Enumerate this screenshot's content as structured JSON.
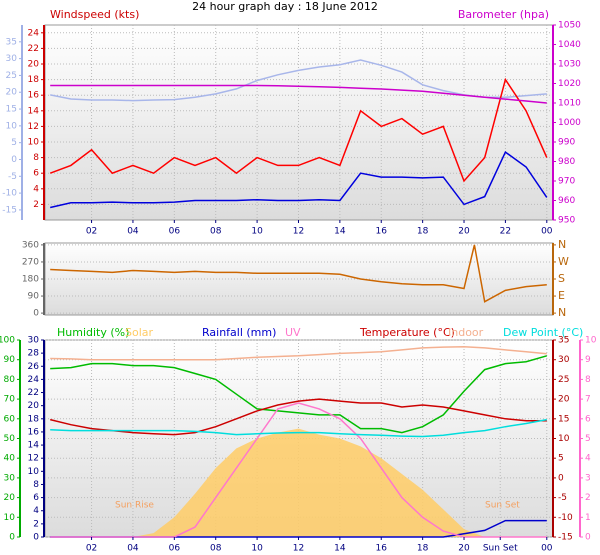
{
  "chart_data": [
    {
      "type": "line",
      "title": "24 hour graph day : 18 June 2012",
      "ylabel": "Windspeed (kts)",
      "y2label": "Barometer (hpa)",
      "x": [
        0,
        1,
        2,
        3,
        4,
        5,
        6,
        7,
        8,
        9,
        10,
        11,
        12,
        13,
        14,
        15,
        16,
        17,
        18,
        19,
        20,
        21,
        22,
        23,
        24
      ],
      "xlim": [
        -0.25,
        24.3
      ],
      "xticks": [
        {
          "value": 2,
          "label": "02"
        },
        {
          "value": 4,
          "label": "04"
        },
        {
          "value": 6,
          "label": "06"
        },
        {
          "value": 8,
          "label": "08"
        },
        10,
        12,
        14,
        16,
        18,
        20,
        22,
        {
          "value": 24,
          "label": "00"
        }
      ],
      "ylim": [
        0,
        25
      ],
      "yticks": [
        2,
        4,
        6,
        8,
        10,
        12,
        14,
        16,
        18,
        20,
        22,
        24
      ],
      "ycolor": "#cc0000",
      "y2lim": [
        950,
        1050
      ],
      "y2ticks": [
        950,
        960,
        970,
        980,
        990,
        1000,
        1010,
        1020,
        1030,
        1040,
        1050
      ],
      "y2color": "#cc00cc",
      "y3lim": [
        -18,
        40
      ],
      "y3ticks": [
        -15,
        -10,
        -5,
        0,
        5,
        10,
        15,
        20,
        25,
        30,
        35
      ],
      "y3color": "#9fb0e6",
      "grid": true,
      "series": [
        {
          "color": "#a8b6ea",
          "axis": "y3",
          "values": [
            19.2,
            18,
            17.7,
            17.7,
            17.5,
            17.7,
            17.8,
            18.5,
            19.5,
            21,
            23.5,
            25.2,
            26.5,
            27.5,
            28.2,
            29.6,
            28,
            26,
            22.2,
            20.5,
            19.2,
            18.5,
            18.5,
            19,
            19.5
          ]
        },
        {
          "color": "#ff0000",
          "axis": "y",
          "values": [
            6,
            7,
            9,
            6,
            7,
            6,
            8,
            7,
            8,
            6,
            8,
            7,
            7,
            8,
            7,
            14,
            12,
            13,
            11,
            12,
            5,
            8,
            18,
            14,
            8
          ]
        },
        {
          "color": "#0000dd",
          "axis": "y",
          "values": [
            1.6,
            2.2,
            2.2,
            2.3,
            2.2,
            2.2,
            2.3,
            2.5,
            2.5,
            2.5,
            2.6,
            2.5,
            2.5,
            2.6,
            2.5,
            6,
            5.5,
            5.5,
            5.4,
            5.5,
            2,
            3,
            8.7,
            6.8,
            2.9
          ]
        },
        {
          "color": "#cc00cc",
          "axis": "y2",
          "values": [
            1019,
            1019,
            1019,
            1019,
            1019,
            1019,
            1019,
            1019,
            1019,
            1019,
            1019,
            1018.8,
            1018.6,
            1018.3,
            1018,
            1017.6,
            1017.2,
            1016.6,
            1016,
            1015,
            1014,
            1013,
            1012,
            1011,
            1010
          ]
        }
      ]
    },
    {
      "type": "line",
      "x": [
        0,
        1,
        2,
        3,
        4,
        5,
        6,
        7,
        8,
        9,
        10,
        11,
        12,
        13,
        14,
        15,
        16,
        17,
        18,
        19,
        20,
        20.5,
        21,
        22,
        23,
        24
      ],
      "xlim": [
        -0.25,
        24.3
      ],
      "ylim": [
        -10,
        370
      ],
      "yticks": [
        0,
        90,
        180,
        270,
        360
      ],
      "ycolor": "#666666",
      "y2lim": [
        -10,
        370
      ],
      "y2ticks": [
        {
          "value": 0,
          "label": "N"
        },
        {
          "value": 90,
          "label": "E"
        },
        {
          "value": 180,
          "label": "S"
        },
        {
          "value": 270,
          "label": "W"
        },
        {
          "value": 360,
          "label": "N"
        }
      ],
      "y2color": "#b8660b",
      "grid": true,
      "series": [
        {
          "color": "#cc6600",
          "axis": "y",
          "values": [
            230,
            225,
            220,
            215,
            225,
            220,
            215,
            220,
            215,
            215,
            210,
            210,
            210,
            210,
            205,
            180,
            165,
            155,
            150,
            150,
            130,
            360,
            60,
            120,
            140,
            150
          ]
        }
      ]
    },
    {
      "type": "line",
      "x": [
        0,
        1,
        2,
        3,
        4,
        5,
        6,
        7,
        8,
        9,
        10,
        11,
        12,
        13,
        14,
        15,
        16,
        17,
        18,
        19,
        20,
        21,
        22,
        23,
        24
      ],
      "xlim": [
        -0.25,
        24.3
      ],
      "xticks": [
        {
          "value": 2,
          "label": "02"
        },
        {
          "value": 4,
          "label": "04"
        },
        {
          "value": 6,
          "label": "06"
        },
        {
          "value": 8,
          "label": "08"
        },
        10,
        12,
        14,
        16,
        18,
        20,
        {
          "value": 21.75,
          "label": "Sun Set"
        },
        {
          "value": 24,
          "label": "00"
        }
      ],
      "ylim": [
        0,
        100
      ],
      "yticks": [
        0,
        10,
        20,
        30,
        40,
        50,
        60,
        70,
        80,
        90,
        100
      ],
      "ycolor": "#00aa00",
      "y2lim": [
        -15,
        35
      ],
      "y2ticks": [
        -15,
        -10,
        -5,
        0,
        5,
        10,
        15,
        20,
        25,
        30,
        35
      ],
      "y2color": "#aa0000",
      "y3lim": [
        0,
        30
      ],
      "y3ticks": [
        0,
        2,
        4,
        6,
        8,
        10,
        12,
        14,
        16,
        18,
        20,
        22,
        24,
        26,
        28,
        30
      ],
      "y3color": "#000080",
      "y4lim": [
        0,
        10
      ],
      "y4ticks": [
        0,
        1,
        2,
        3,
        4,
        5,
        6,
        7,
        8,
        9,
        10
      ],
      "y4color": "#ff66cc",
      "grid": true,
      "annotations": [
        "Sun Rise",
        "Sun Set"
      ],
      "series": [
        {
          "name": "Humidity (%)",
          "color": "#00bb00",
          "axis": "y",
          "values": [
            85.5,
            86,
            88,
            88,
            87,
            87,
            86,
            83,
            80,
            72.5,
            65,
            64,
            63,
            62,
            62,
            55,
            55,
            53,
            56,
            62,
            74,
            85,
            88,
            89,
            92
          ]
        },
        {
          "name": "Solar",
          "color": "#ffcc66",
          "axis": "y",
          "style": "area",
          "values": [
            0,
            0,
            0,
            0,
            0,
            2,
            10,
            22,
            35,
            45,
            50,
            53,
            55,
            52,
            50,
            46,
            40,
            32,
            24,
            14,
            4,
            0,
            0,
            0,
            0
          ]
        },
        {
          "name": "Rainfall (mm)",
          "color": "#0000cc",
          "axis": "y3",
          "values": [
            0,
            0,
            0,
            0,
            0,
            0,
            0,
            0,
            0,
            0,
            0,
            0,
            0,
            0,
            0,
            0,
            0,
            0,
            0,
            0,
            0.5,
            1,
            2.5,
            2.5,
            2.5
          ]
        },
        {
          "name": "UV",
          "color": "#ff77cc",
          "axis": "y4",
          "values": [
            0,
            0,
            0,
            0,
            0,
            0,
            0,
            0.5,
            2,
            3.5,
            5,
            6.5,
            6.8,
            6.5,
            6,
            5,
            3.5,
            2,
            1,
            0.3,
            0,
            0,
            0,
            0,
            0
          ]
        },
        {
          "name": "Temperature (°C)",
          "color": "#cc0000",
          "axis": "y2",
          "values": [
            14.8,
            13.5,
            12.5,
            12,
            11.5,
            11.2,
            11,
            11.5,
            13,
            15,
            17,
            18.5,
            19.5,
            20,
            19.5,
            19,
            19,
            18,
            18.5,
            18,
            17,
            16,
            15,
            14.5,
            14.5
          ]
        },
        {
          "name": "Indoor",
          "color": "#f4b090",
          "axis": "y2",
          "values": [
            30.3,
            30.2,
            30,
            30,
            30,
            30,
            30,
            30,
            30,
            30.3,
            30.6,
            30.8,
            31,
            31.3,
            31.6,
            31.8,
            32,
            32.5,
            33,
            33.2,
            33.3,
            33,
            32.5,
            32,
            31.5
          ]
        },
        {
          "name": "Dew Point (°C)",
          "color": "#00dddd",
          "axis": "y2",
          "values": [
            12.2,
            12,
            12,
            12,
            12,
            12,
            12,
            11.8,
            11.5,
            11,
            11.2,
            11.4,
            11.5,
            11.5,
            11.2,
            11,
            10.8,
            10.6,
            10.5,
            10.8,
            11.5,
            12,
            13,
            13.8,
            14.8
          ]
        }
      ]
    }
  ]
}
